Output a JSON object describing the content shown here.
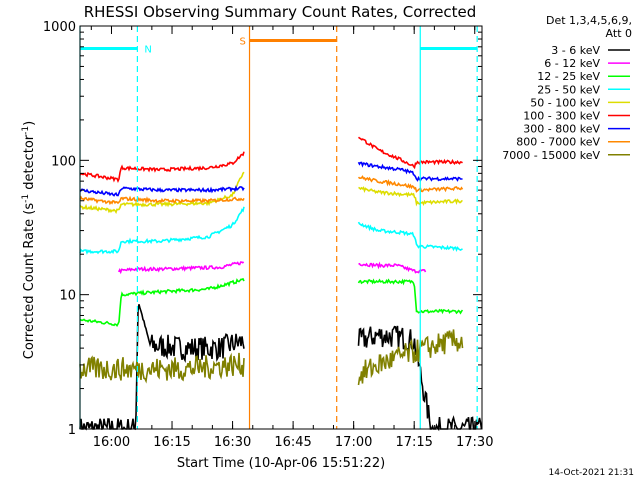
{
  "chart_data": {
    "type": "line",
    "title": "RHESSI Observing Summary Count Rates, Corrected",
    "xlabel": "Start Time (10-Apr-06 15:51:22)",
    "ylabel_main": "Corrected Count Rate (s",
    "ylabel_sup1": "-1",
    "ylabel_mid": " detector",
    "ylabel_sup2": "-1",
    "ylabel_end": ")",
    "yscale": "log",
    "ylim": [
      1,
      1000
    ],
    "xlim_minutes": [
      15.87,
      17.53
    ],
    "x_ticks": [
      "16:00",
      "16:15",
      "16:30",
      "16:45",
      "17:00",
      "17:15",
      "17:30"
    ],
    "x_tick_minutes": [
      16.0,
      16.25,
      16.5,
      16.75,
      17.0,
      17.25,
      17.5
    ],
    "y_ticks": [
      "1",
      "10",
      "100",
      "1000"
    ],
    "y_tick_values": [
      1,
      10,
      100,
      1000
    ],
    "legend_position": "right",
    "legend_header": [
      "Det 1,3,4,5,6,9,",
      "Att 0"
    ],
    "series": [
      {
        "name": "3 - 6 keV",
        "color": "#000000",
        "segments": [
          {
            "x": [
              15.87,
              16.1,
              16.11,
              16.16,
              16.3,
              16.45,
              16.5,
              16.55
            ],
            "y": [
              1.0,
              1.0,
              9.0,
              4.2,
              4.0,
              4.0,
              4.3,
              4.5
            ]
          },
          {
            "x": [
              17.02,
              17.1,
              17.2,
              17.25,
              17.32,
              17.53
            ],
            "y": [
              4.5,
              5.0,
              4.8,
              4.5,
              1.0,
              1.0
            ]
          }
        ]
      },
      {
        "name": "6 - 12 keV",
        "color": "#ff00ff",
        "segments": [
          {
            "x": [
              16.03,
              16.1,
              16.2,
              16.35,
              16.45,
              16.55
            ],
            "y": [
              15,
              15.5,
              15.5,
              15.8,
              16,
              17.5
            ]
          },
          {
            "x": [
              17.02,
              17.1,
              17.18,
              17.25,
              17.3
            ],
            "y": [
              17,
              16.5,
              16.5,
              15,
              15
            ]
          }
        ]
      },
      {
        "name": "12 - 25 keV",
        "color": "#00ff00",
        "segments": [
          {
            "x": [
              15.87,
              16.03,
              16.04,
              16.2,
              16.4,
              16.55
            ],
            "y": [
              6.5,
              6.0,
              10,
              10.5,
              11.0,
              13.0
            ]
          },
          {
            "x": [
              17.02,
              17.1,
              17.2,
              17.25,
              17.26,
              17.45
            ],
            "y": [
              12.5,
              12.5,
              12.5,
              12.5,
              7.5,
              7.5
            ]
          }
        ]
      },
      {
        "name": "25 - 50 keV",
        "color": "#00ffff",
        "segments": [
          {
            "x": [
              15.87,
              16.03,
              16.04,
              16.2,
              16.4,
              16.5,
              16.55
            ],
            "y": [
              21,
              21,
              25,
              25,
              27,
              33,
              45
            ]
          },
          {
            "x": [
              17.02,
              17.1,
              17.2,
              17.25,
              17.26,
              17.45
            ],
            "y": [
              34,
              30,
              29,
              28,
              23,
              22
            ]
          }
        ]
      },
      {
        "name": "50 - 100 keV",
        "color": "#dddd00",
        "segments": [
          {
            "x": [
              15.87,
              16.03,
              16.04,
              16.2,
              16.4,
              16.5,
              16.55
            ],
            "y": [
              45,
              42,
              47,
              47,
              48,
              55,
              85
            ]
          },
          {
            "x": [
              17.02,
              17.1,
              17.2,
              17.25,
              17.26,
              17.45
            ],
            "y": [
              62,
              58,
              56,
              55,
              48,
              50
            ]
          }
        ]
      },
      {
        "name": "100 - 300 keV",
        "color": "#ff0000",
        "segments": [
          {
            "x": [
              15.87,
              16.03,
              16.04,
              16.2,
              16.4,
              16.5,
              16.55
            ],
            "y": [
              80,
              72,
              88,
              85,
              88,
              95,
              115
            ]
          },
          {
            "x": [
              17.02,
              17.1,
              17.2,
              17.25,
              17.26,
              17.45
            ],
            "y": [
              150,
              120,
              100,
              90,
              97,
              97
            ]
          }
        ]
      },
      {
        "name": "300 - 800 keV",
        "color": "#0000ff",
        "segments": [
          {
            "x": [
              15.87,
              16.03,
              16.04,
              16.2,
              16.4,
              16.55
            ],
            "y": [
              60,
              55,
              62,
              60,
              60,
              62
            ]
          },
          {
            "x": [
              17.02,
              17.1,
              17.2,
              17.25,
              17.26,
              17.45
            ],
            "y": [
              95,
              90,
              85,
              80,
              73,
              73
            ]
          }
        ]
      },
      {
        "name": "800 - 7000 keV",
        "color": "#ff8800",
        "segments": [
          {
            "x": [
              15.87,
              16.03,
              16.04,
              16.2,
              16.4,
              16.55
            ],
            "y": [
              52,
              48,
              52,
              50,
              50,
              52
            ]
          },
          {
            "x": [
              17.02,
              17.1,
              17.2,
              17.25,
              17.26,
              17.45
            ],
            "y": [
              75,
              70,
              66,
              63,
              60,
              62
            ]
          }
        ]
      },
      {
        "name": "7000 - 15000 keV",
        "color": "#808000",
        "segments": [
          {
            "x": [
              15.87,
              16.1,
              16.3,
              16.5,
              16.55
            ],
            "y": [
              2.8,
              2.8,
              2.8,
              3.0,
              3.0
            ]
          },
          {
            "x": [
              17.02,
              17.1,
              17.2,
              17.3,
              17.4,
              17.45
            ],
            "y": [
              2.5,
              3.0,
              3.5,
              4.0,
              4.5,
              4.5
            ]
          }
        ]
      }
    ],
    "annotations": [
      {
        "label": "N",
        "color": "#00ffff",
        "x_start": 15.87,
        "x_end": 16.107,
        "y": 680
      },
      {
        "label": "",
        "color": "#00ffff",
        "x_start": 17.275,
        "x_end": 17.51,
        "y": 680
      },
      {
        "label": "S",
        "color": "#ff8000",
        "x_start": 16.57,
        "x_end": 16.93,
        "y": 780
      }
    ],
    "vertical_lines": [
      {
        "x": 15.87,
        "color": "#00ffff",
        "style": "solid"
      },
      {
        "x": 16.107,
        "color": "#00ffff",
        "style": "dashed"
      },
      {
        "x": 16.57,
        "color": "#ff8000",
        "style": "solid"
      },
      {
        "x": 16.93,
        "color": "#ff8000",
        "style": "dashed"
      },
      {
        "x": 17.275,
        "color": "#00ffff",
        "style": "solid"
      },
      {
        "x": 17.51,
        "color": "#00ffff",
        "style": "dashed"
      }
    ],
    "footer_date": "14-Oct-2021 21:31"
  }
}
